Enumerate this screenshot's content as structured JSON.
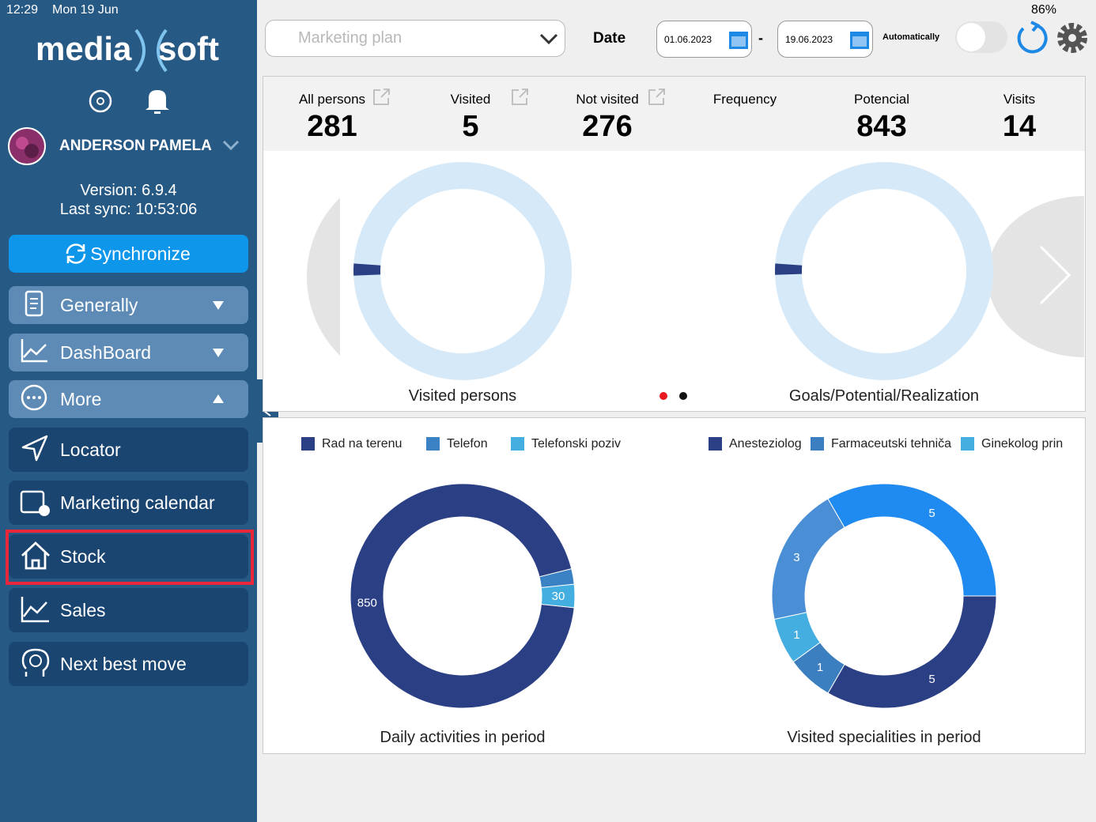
{
  "status_bar": {
    "time": "12:29",
    "date": "Mon 19 Jun",
    "battery": "86%"
  },
  "sidebar": {
    "logo_left": "media",
    "logo_right": "soft",
    "user": "ANDERSON PAMELA",
    "version": "Version: 6.9.4",
    "last_sync": "Last sync: 10:53:06",
    "sync_button": "Synchronize",
    "menu": [
      "Generally",
      "DashBoard",
      "More",
      "Locator",
      "Marketing calendar",
      "Stock",
      "Sales",
      "Next best move"
    ]
  },
  "toolbar": {
    "plan_select": "Marketing plan",
    "date_label": "Date",
    "date_from": "01.06.2023",
    "separator": "-",
    "date_to": "19.06.2023",
    "auto_label": "Automatically"
  },
  "stats": [
    {
      "label": "All persons",
      "value": 281
    },
    {
      "label": "Visited",
      "value": 5
    },
    {
      "label": "Not visited",
      "value": 276
    },
    {
      "label": "Frequency"
    },
    {
      "label": "Potencial",
      "value": 843
    },
    {
      "label": "Visits",
      "value": 14
    }
  ],
  "gauges": [
    {
      "title": "Visited persons"
    },
    {
      "title": "Goals/Potential/Realization"
    }
  ],
  "charts": [
    {
      "type": "pie",
      "title": "Daily activities in period",
      "categories": [
        "Rad na terenu",
        "Telefon",
        "Telefonski poziv"
      ],
      "values": [
        850,
        20,
        30
      ],
      "colors": [
        "#2b3f85",
        "#3b82c4",
        "#45aee0"
      ]
    },
    {
      "type": "pie",
      "title": "Visited specialities in period",
      "categories": [
        "Anesteziolog",
        "Farmaceutski tehniča",
        "Ginekolog prin",
        null,
        null
      ],
      "values": [
        5,
        1,
        1,
        3,
        5
      ],
      "colors": [
        "#2b3f85",
        "#3b7fc0",
        "#45aee0",
        "#4a8fd6",
        "#1f8af0"
      ]
    }
  ]
}
